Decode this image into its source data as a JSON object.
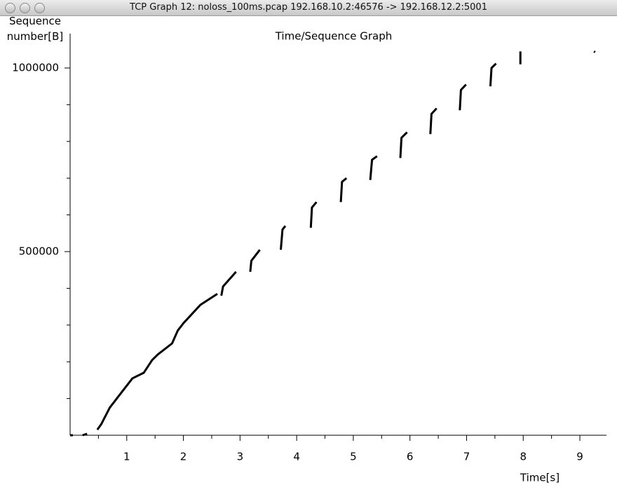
{
  "window_title": "TCP Graph 12: noloss_100ms.pcap 192.168.10.2:46576 -> 192.168.12.2:5001",
  "chart_data": {
    "type": "line",
    "title": "Time/Sequence Graph",
    "x_label": "Time[s]",
    "y_label": "Sequence number[B]",
    "color": "#000000",
    "x": [
      0,
      0.05,
      null,
      0.22,
      0.3,
      null,
      0.48,
      0.55,
      0.7,
      0.9,
      1.1,
      1.3,
      1.45,
      1.55,
      1.8,
      1.9,
      2.0,
      2.3,
      2.6,
      null,
      2.67,
      2.7,
      2.93,
      null,
      3.18,
      3.2,
      3.35,
      null,
      3.72,
      3.75,
      3.8,
      null,
      4.25,
      4.27,
      4.35,
      null,
      4.78,
      4.8,
      4.88,
      null,
      5.3,
      5.33,
      5.42,
      null,
      5.83,
      5.85,
      5.95,
      null,
      6.36,
      6.38,
      6.47,
      null,
      6.88,
      6.9,
      6.99,
      null,
      7.42,
      7.44,
      7.52,
      null,
      7.95,
      7.95,
      null,
      9.25,
      9.27
    ],
    "values": [
      0,
      0,
      null,
      0,
      4000,
      null,
      15000,
      30000,
      75000,
      115000,
      155000,
      170000,
      205000,
      220000,
      250000,
      285000,
      305000,
      355000,
      385000,
      null,
      380000,
      405000,
      445000,
      null,
      445000,
      475000,
      505000,
      null,
      505000,
      560000,
      570000,
      null,
      565000,
      620000,
      635000,
      null,
      635000,
      690000,
      700000,
      null,
      695000,
      750000,
      760000,
      null,
      755000,
      810000,
      825000,
      null,
      820000,
      875000,
      890000,
      null,
      885000,
      940000,
      955000,
      null,
      950000,
      1000000,
      1012000,
      null,
      1010000,
      1045000,
      null,
      1045000,
      1043000
    ],
    "xlim": [
      0,
      9.47
    ],
    "ylim": [
      0,
      1093500
    ],
    "xticks": [
      1,
      2,
      3,
      4,
      5,
      6,
      7,
      8,
      9
    ],
    "xminorticks": [
      0.5,
      1.5,
      2.5,
      3.5,
      4.5,
      5.5,
      6.5,
      7.5,
      8.5
    ],
    "yticks": [
      500000,
      1000000
    ],
    "yminorticks": [
      100000,
      200000,
      300000,
      400000,
      600000,
      700000,
      800000,
      900000
    ]
  }
}
